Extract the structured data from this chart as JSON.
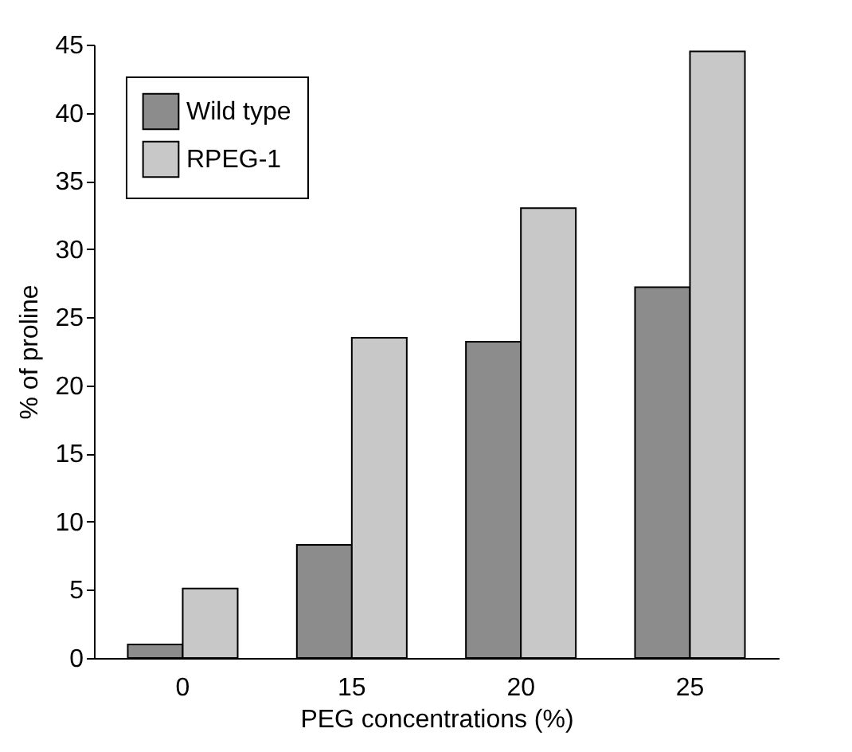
{
  "chart_data": {
    "type": "bar",
    "xlabel": "PEG concentrations (%)",
    "ylabel": "% of proline",
    "categories": [
      "0",
      "15",
      "20",
      "25"
    ],
    "series": [
      {
        "name": "Wild type",
        "color": "#8c8c8c",
        "values": [
          1,
          8.3,
          23.2,
          27.2
        ]
      },
      {
        "name": "RPEG-1",
        "color": "#c8c8c8",
        "values": [
          5.1,
          23.5,
          33,
          44.5
        ]
      }
    ],
    "ylim": [
      0,
      45
    ],
    "yticks": [
      0,
      5,
      10,
      15,
      20,
      25,
      30,
      35,
      40,
      45
    ],
    "grid": false,
    "legend": "top left"
  }
}
